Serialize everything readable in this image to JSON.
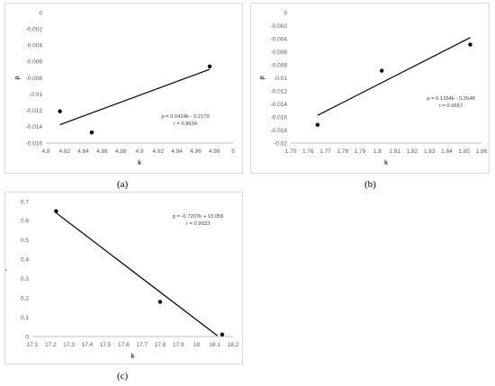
{
  "chart_data": [
    {
      "type": "scatter",
      "caption": "(a)",
      "xlabel": "k",
      "ylabel": "p",
      "xlim": [
        4.8,
        5
      ],
      "ylim": [
        -0.016,
        0
      ],
      "xticks": [
        "4.8",
        "4.82",
        "4.84",
        "4.86",
        "4.88",
        "4.9",
        "4.92",
        "4.94",
        "4.96",
        "4.98",
        "5"
      ],
      "yticks": [
        "0",
        "-0.002",
        "-0.004",
        "-0.006",
        "-0.008",
        "-0.01",
        "-0.012",
        "-0.014",
        "-0.016"
      ],
      "points": [
        [
          4.815,
          -0.0121
        ],
        [
          4.849,
          -0.0147
        ],
        [
          4.975,
          -0.0066
        ]
      ],
      "trendline": {
        "x": [
          4.815,
          4.975
        ],
        "slope": 0.0424,
        "intercept": -0.2179
      },
      "equation": "p = 0.0424k - 0.2179",
      "r_label": "r = 0.8634",
      "grid": false
    },
    {
      "type": "scatter",
      "caption": "(b)",
      "xlabel": "k",
      "ylabel": "p",
      "xlim": [
        1.75,
        1.86
      ],
      "ylim": [
        -0.02,
        0
      ],
      "xticks": [
        "1.75",
        "1.76",
        "1.77",
        "1.78",
        "1.79",
        "1.8",
        "1.81",
        "1.82",
        "1.83",
        "1.84",
        "1.85",
        "1.86"
      ],
      "yticks": [
        "0",
        "-0.002",
        "-0.004",
        "-0.006",
        "-0.008",
        "-0.01",
        "-0.012",
        "-0.014",
        "-0.016",
        "-0.018",
        "-0.02"
      ],
      "points": [
        [
          1.7655,
          -0.0172
        ],
        [
          1.8025,
          -0.0089
        ],
        [
          1.8535,
          -0.0049
        ]
      ],
      "trendline": {
        "x": [
          1.7655,
          1.8535
        ],
        "slope": 0.1354,
        "intercept": -0.2548
      },
      "equation": "p = 0.1354k - 0.2548",
      "r_label": "r = 0.9657",
      "grid": false
    },
    {
      "type": "scatter",
      "caption": "(c)",
      "xlabel": "k",
      "ylabel": "p",
      "xlim": [
        17.1,
        18.2
      ],
      "ylim": [
        0,
        0.7
      ],
      "xticks": [
        "17.1",
        "17.2",
        "17.3",
        "17.4",
        "17.5",
        "17.6",
        "17.7",
        "17.8",
        "17.9",
        "18",
        "18.1",
        "18.2"
      ],
      "yticks": [
        "0.7",
        "0.6",
        "0.5",
        "0.4",
        "0.3",
        "0.2",
        "0.1",
        "0"
      ],
      "points": [
        [
          17.23,
          0.65
        ],
        [
          17.8,
          0.18
        ],
        [
          18.14,
          0.01
        ]
      ],
      "trendline": {
        "x": [
          17.23,
          18.114
        ],
        "slope": -0.7207,
        "intercept": 13.059
      },
      "equation": "p = -0.7207k + 13.059",
      "r_label": "r = 0.9933",
      "grid": false
    }
  ]
}
